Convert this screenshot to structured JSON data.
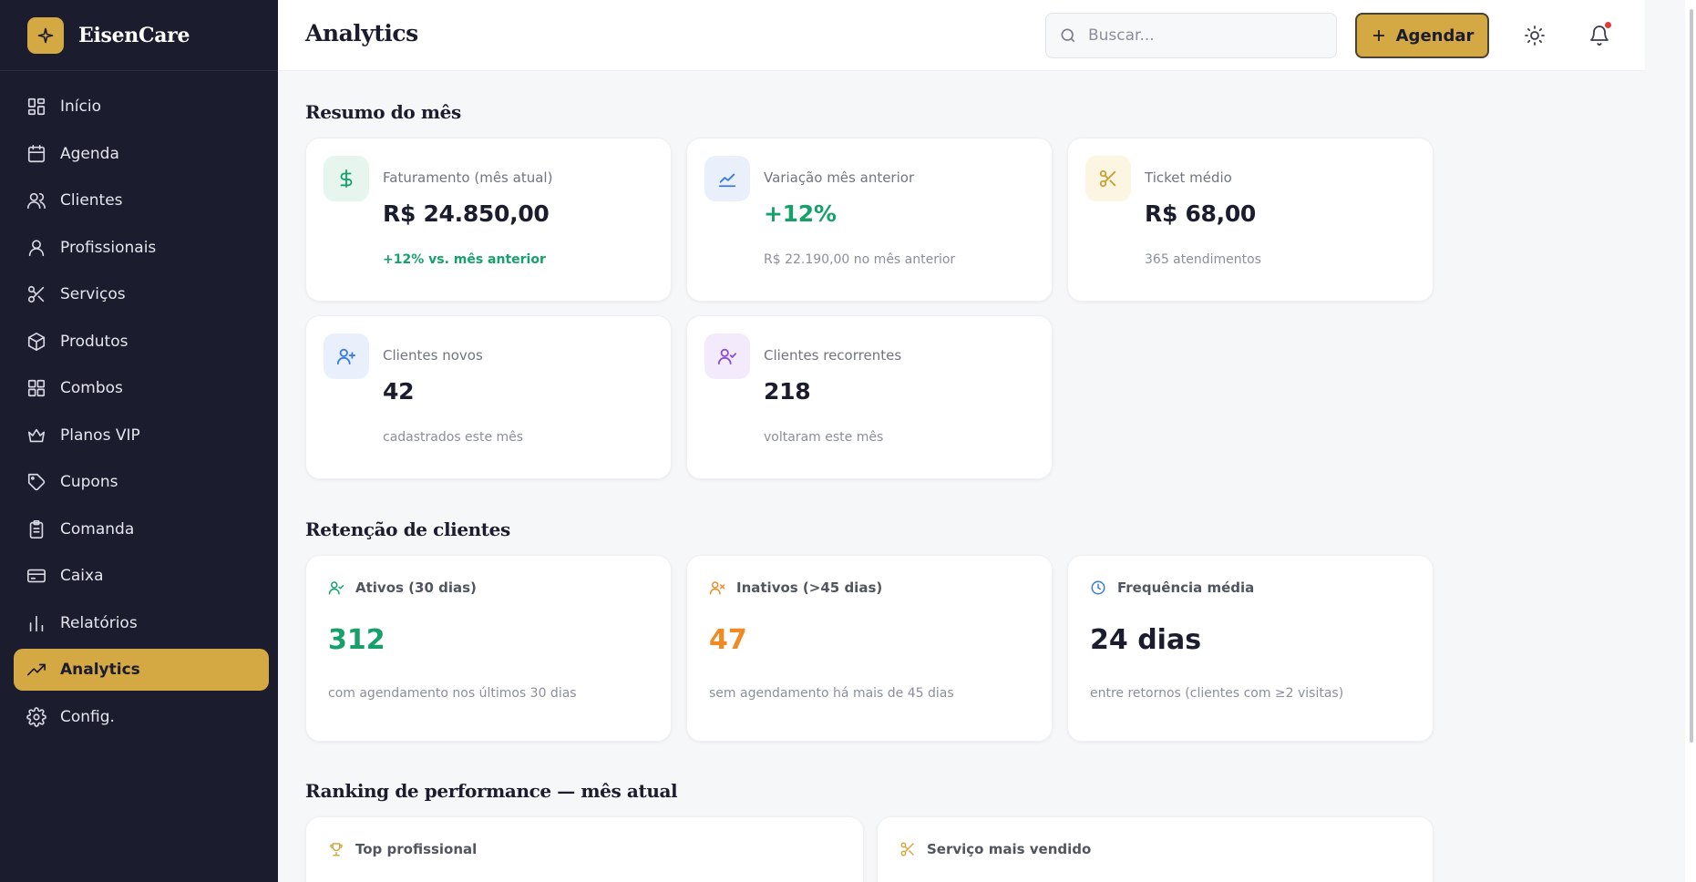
{
  "brand": {
    "name": "EisenCare"
  },
  "sidebar": {
    "items": [
      {
        "label": "Início",
        "icon": "dashboard-icon"
      },
      {
        "label": "Agenda",
        "icon": "calendar-icon"
      },
      {
        "label": "Clientes",
        "icon": "users-icon"
      },
      {
        "label": "Profissionais",
        "icon": "user-icon"
      },
      {
        "label": "Serviços",
        "icon": "scissors-icon"
      },
      {
        "label": "Produtos",
        "icon": "package-icon"
      },
      {
        "label": "Combos",
        "icon": "grid-icon"
      },
      {
        "label": "Planos VIP",
        "icon": "crown-icon"
      },
      {
        "label": "Cupons",
        "icon": "tag-icon"
      },
      {
        "label": "Comanda",
        "icon": "clipboard-icon"
      },
      {
        "label": "Caixa",
        "icon": "credit-card-icon"
      },
      {
        "label": "Relatórios",
        "icon": "bar-chart-icon"
      },
      {
        "label": "Analytics",
        "icon": "trending-up-icon",
        "active": true
      },
      {
        "label": "Config.",
        "icon": "gear-icon"
      }
    ]
  },
  "header": {
    "title": "Analytics",
    "search_placeholder": "Buscar...",
    "agendar_label": "Agendar"
  },
  "resumo": {
    "title": "Resumo do mês",
    "cards": [
      {
        "label": "Faturamento (mês atual)",
        "value": "R$ 24.850,00",
        "sub": "+12% vs. mês anterior",
        "icon": "dollar-icon"
      },
      {
        "label": "Variação mês anterior",
        "value": "+12%",
        "sub": "R$ 22.190,00 no mês anterior",
        "icon": "line-chart-icon"
      },
      {
        "label": "Ticket médio",
        "value": "R$ 68,00",
        "sub": "365 atendimentos",
        "icon": "scissors-icon"
      },
      {
        "label": "Clientes novos",
        "value": "42",
        "sub": "cadastrados este mês",
        "icon": "user-plus-icon"
      },
      {
        "label": "Clientes recorrentes",
        "value": "218",
        "sub": "voltaram este mês",
        "icon": "user-check-icon"
      }
    ]
  },
  "retencao": {
    "title": "Retenção de clientes",
    "cards": [
      {
        "label": "Ativos (30 dias)",
        "value": "312",
        "sub": "com agendamento nos últimos 30 dias",
        "icon": "user-check-icon"
      },
      {
        "label": "Inativos (>45 dias)",
        "value": "47",
        "sub": "sem agendamento há mais de 45 dias",
        "icon": "user-x-icon"
      },
      {
        "label": "Frequência média",
        "value": "24 dias",
        "sub": "entre retornos (clientes com ≥2 visitas)",
        "icon": "clock-icon"
      }
    ]
  },
  "ranking": {
    "title": "Ranking de performance — mês atual",
    "cards": [
      {
        "label": "Top profissional",
        "icon": "trophy-icon"
      },
      {
        "label": "Serviço mais vendido",
        "icon": "scissors-icon"
      }
    ]
  },
  "colors": {
    "sidebar_bg": "#1b1c2e",
    "accent": "#d4a843",
    "positive": "#16a06a",
    "warning": "#f08a24",
    "info": "#3b7be0",
    "purple": "#8b4fd6"
  }
}
